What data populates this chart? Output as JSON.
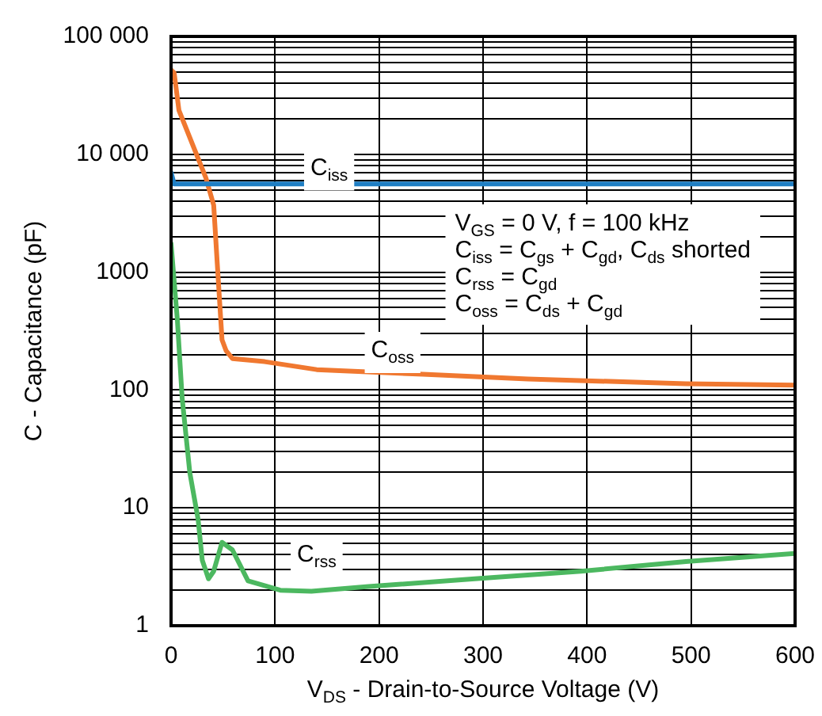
{
  "chart_data": {
    "type": "line",
    "xlabel": "V$_{DS}$ - Drain-to-Source Voltage (V)",
    "ylabel": "C - Capacitance (pF)",
    "log": "y",
    "grid": true,
    "marker": "none",
    "line_style": "solid",
    "xlim": [
      0,
      600
    ],
    "xticks": [
      0,
      100,
      200,
      300,
      400,
      500,
      600
    ],
    "ylim": [
      1,
      100000
    ],
    "yticks": [
      1,
      {
        "value": 2,
        "label": null
      },
      {
        "value": 3,
        "label": null
      },
      {
        "value": 4,
        "label": null
      },
      {
        "value": 5,
        "label": null
      },
      {
        "value": 6,
        "label": null
      },
      {
        "value": 7,
        "label": null
      },
      {
        "value": 8,
        "label": null
      },
      {
        "value": 9,
        "label": null
      },
      10,
      {
        "value": 20,
        "label": null
      },
      {
        "value": 30,
        "label": null
      },
      {
        "value": 40,
        "label": null
      },
      {
        "value": 50,
        "label": null
      },
      {
        "value": 60,
        "label": null
      },
      {
        "value": 70,
        "label": null
      },
      {
        "value": 80,
        "label": null
      },
      {
        "value": 90,
        "label": null
      },
      100,
      {
        "value": 200,
        "label": null
      },
      {
        "value": 300,
        "label": null
      },
      {
        "value": 400,
        "label": null
      },
      {
        "value": 500,
        "label": null
      },
      {
        "value": 600,
        "label": null
      },
      {
        "value": 700,
        "label": null
      },
      {
        "value": 800,
        "label": null
      },
      {
        "value": 900,
        "label": null
      },
      1000,
      {
        "value": 2000,
        "label": null
      },
      {
        "value": 3000,
        "label": null
      },
      {
        "value": 4000,
        "label": null
      },
      {
        "value": 5000,
        "label": null
      },
      {
        "value": 6000,
        "label": null
      },
      {
        "value": 7000,
        "label": null
      },
      {
        "value": 8000,
        "label": null
      },
      {
        "value": 9000,
        "label": null
      },
      {
        "value": 10000,
        "label": "10 000"
      },
      {
        "value": 20000,
        "label": null
      },
      {
        "value": 30000,
        "label": null
      },
      {
        "value": 40000,
        "label": null
      },
      {
        "value": 50000,
        "label": null
      },
      {
        "value": 60000,
        "label": null
      },
      {
        "value": 70000,
        "label": null
      },
      {
        "value": 80000,
        "label": null
      },
      {
        "value": 90000,
        "label": null
      },
      {
        "value": 100000,
        "label": "100 000"
      }
    ],
    "series": [
      {
        "color": "#1f7fc4",
        "x": [
          0,
          3,
          600
        ],
        "values": [
          7000,
          5600,
          5600
        ]
      },
      {
        "color": "#f07830",
        "x": [
          0,
          3,
          7.6,
          33.5,
          41,
          44,
          49,
          53,
          59,
          90,
          140,
          242,
          343,
          495,
          600
        ],
        "values": [
          52000,
          49000,
          23600,
          6300,
          3700,
          1360,
          267,
          215,
          185,
          174,
          149,
          136,
          124,
          113,
          110
        ]
      },
      {
        "color": "#4cb860",
        "x": [
          0,
          6,
          10.7,
          18,
          26,
          30,
          36,
          41,
          49,
          59,
          74,
          105,
          135,
          190,
          292,
          394,
          495,
          600
        ],
        "values": [
          1750,
          400,
          85,
          20,
          8,
          3.6,
          2.5,
          2.9,
          5.1,
          4.4,
          2.4,
          2,
          1.96,
          2.15,
          2.5,
          2.9,
          3.5,
          4.1
        ]
      }
    ],
    "annotations": [
      {
        "text": "C$_{iss}$",
        "x": 152,
        "y": 7600
      },
      {
        "text": "C$_{oss}$",
        "x": 213,
        "y": 215
      },
      {
        "text": "C$_{rss}$",
        "x": 140,
        "y": 4
      },
      "V$_{GS}$ = 0 V, f = 100 kHz",
      "C$_{iss}$ = C$_{gs}$ + C$_{gd}$, C$_{ds}$ shorted",
      "C$_{rss}$ = C$_{gd}$",
      "C$_{oss}$ = C$_{ds}$ + C$_{gd}$"
    ]
  }
}
